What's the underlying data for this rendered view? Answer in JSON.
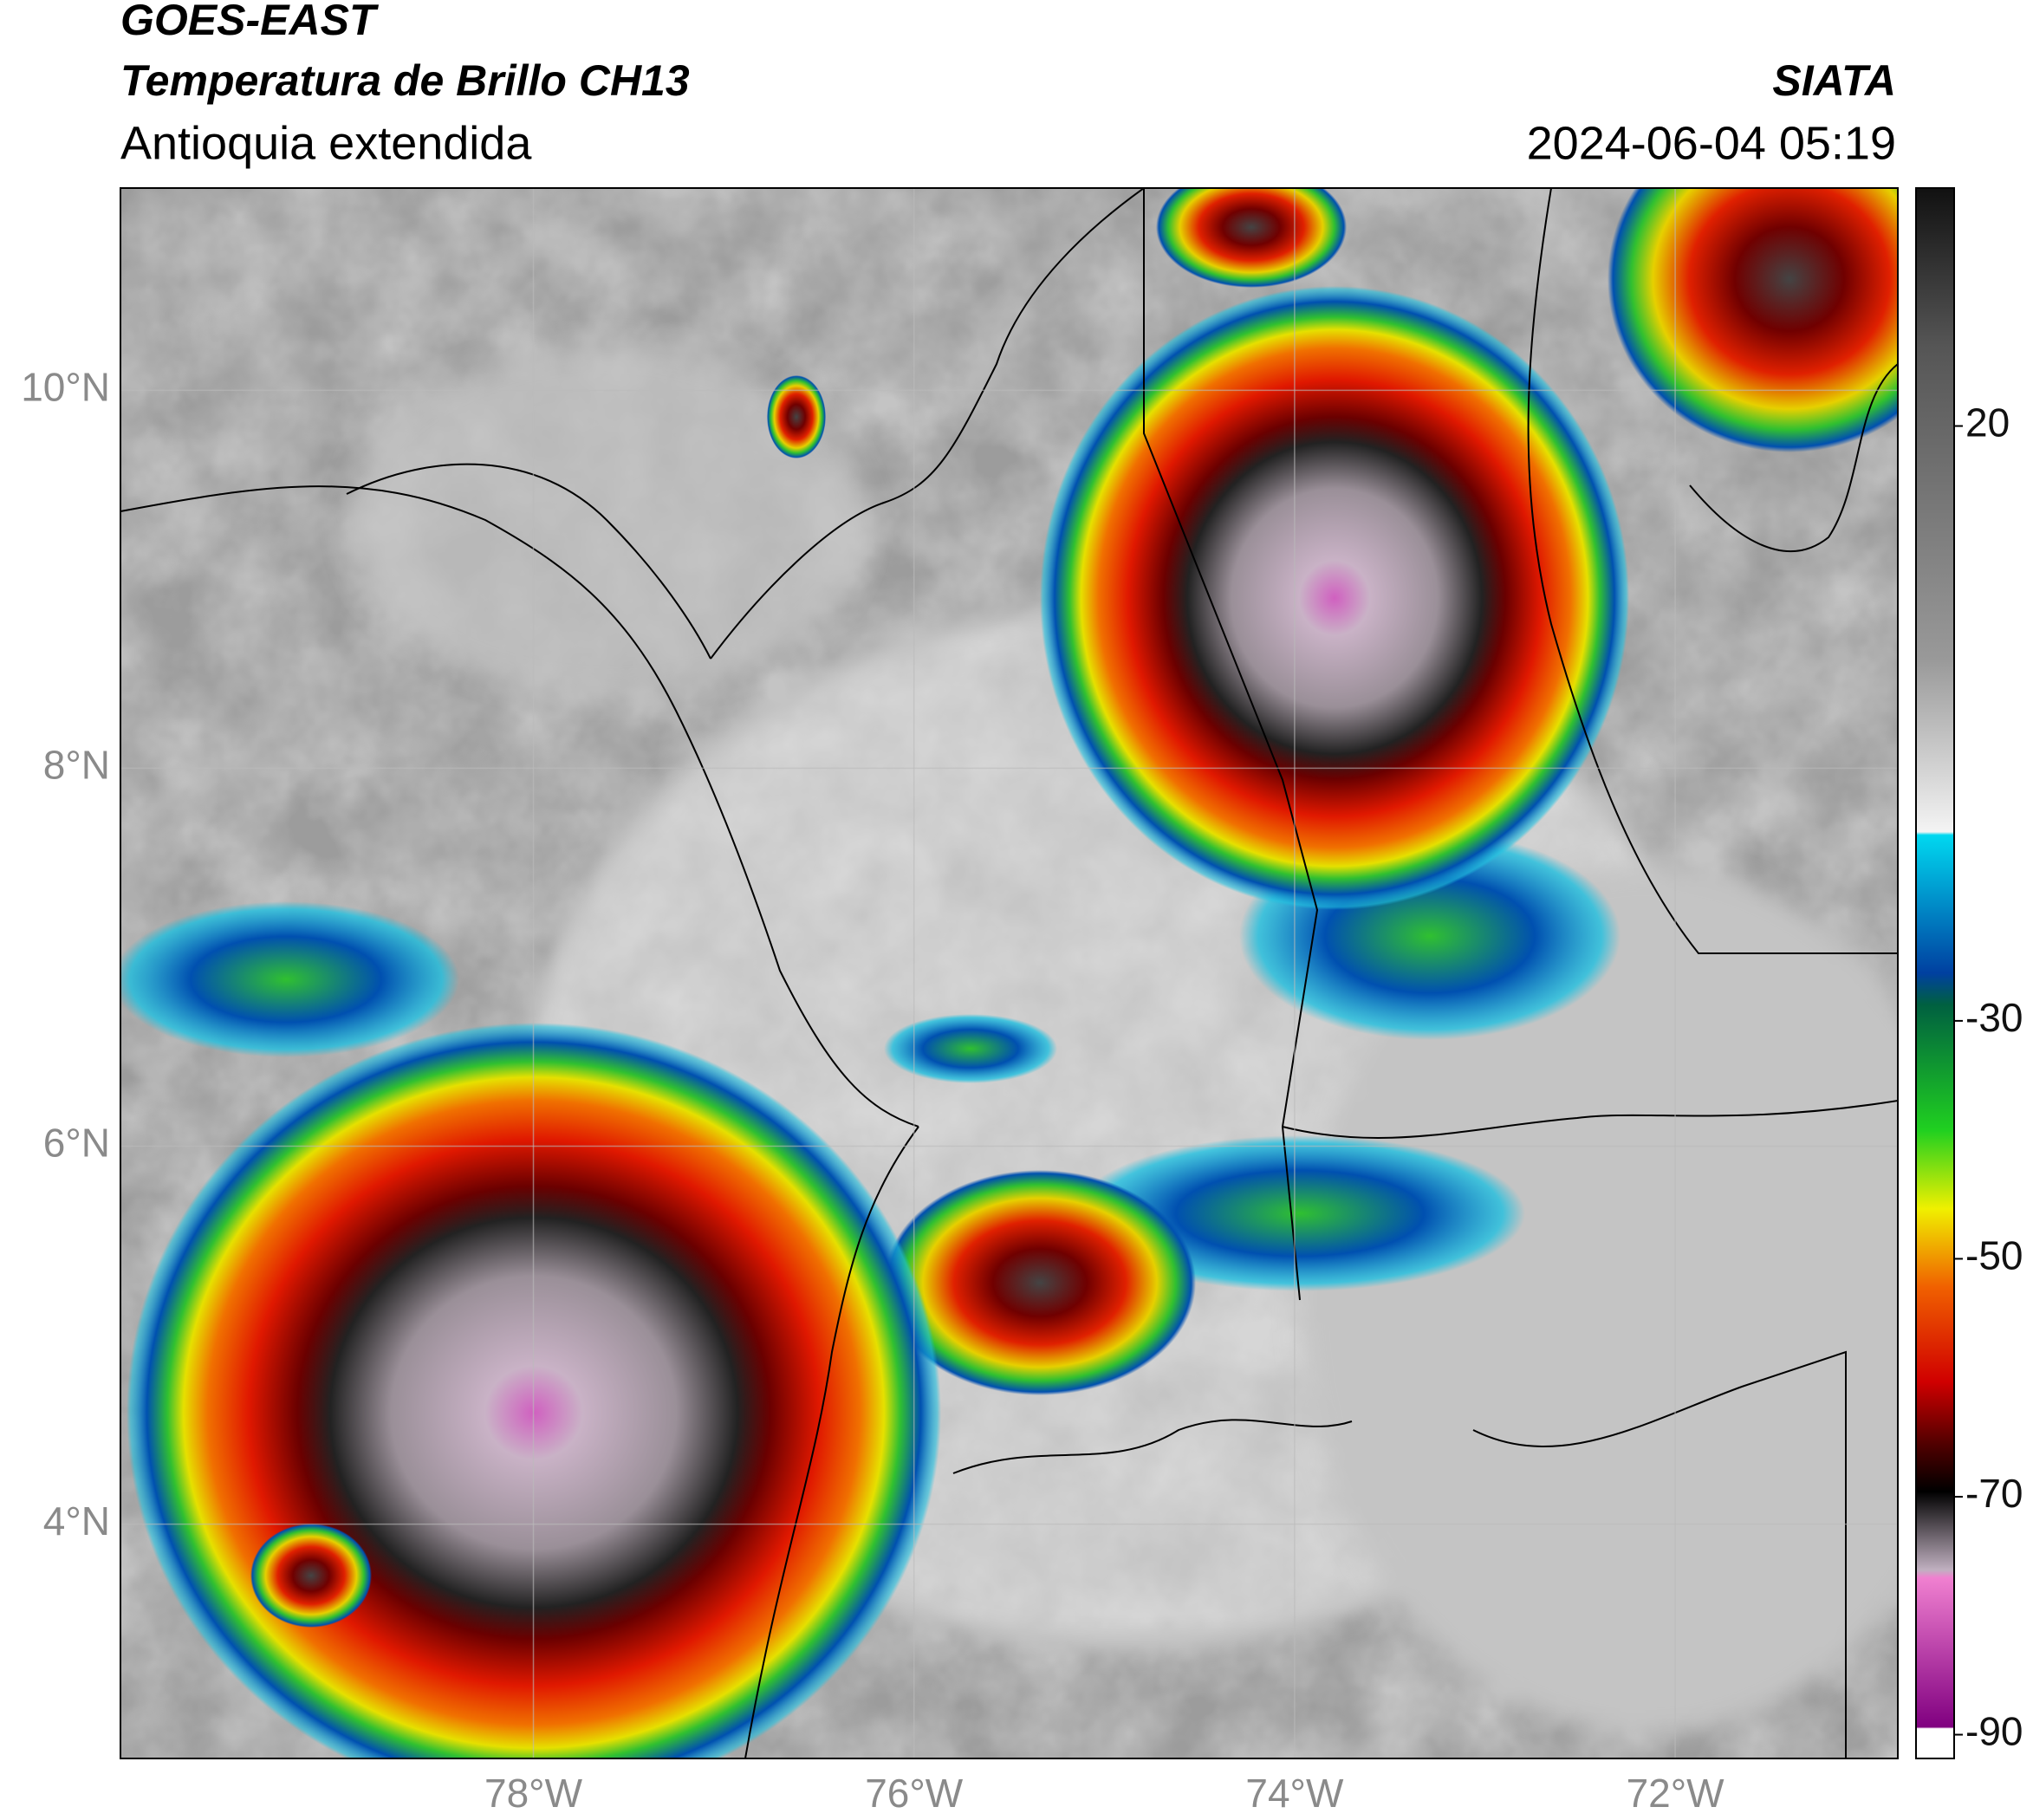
{
  "header": {
    "title": "GOES-EAST",
    "subtitle": "Temperatura de Brillo CH13",
    "region": "Antioquia extendida",
    "source": "SIATA",
    "datetime": "2024-06-04 05:19"
  },
  "map": {
    "lon_range": [
      -80.17,
      -70.83
    ],
    "lat_range": [
      2.76,
      11.07
    ],
    "grid": true,
    "lon_ticks": [
      {
        "value": -78,
        "label": "78°W"
      },
      {
        "value": -76,
        "label": "76°W"
      },
      {
        "value": -74,
        "label": "74°W"
      },
      {
        "value": -72,
        "label": "72°W"
      }
    ],
    "lat_ticks": [
      {
        "value": 10,
        "label": "10°N"
      },
      {
        "value": 8,
        "label": "8°N"
      },
      {
        "value": 6,
        "label": "6°N"
      },
      {
        "value": 4,
        "label": "4°N"
      }
    ]
  },
  "colorbar": {
    "range": [
      -92,
      40
    ],
    "ticks": [
      20,
      -30,
      -50,
      -70,
      -90
    ]
  }
}
